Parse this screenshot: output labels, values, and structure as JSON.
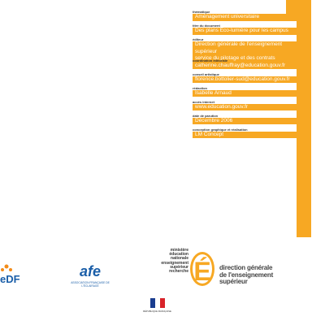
{
  "credits": [
    {
      "label": "thématique",
      "lines": [
        "Aménagement universitaire"
      ]
    },
    {
      "label": "titre du document",
      "lines": [
        "Des plans Éco-lumière pour les campus"
      ]
    },
    {
      "label": "éditeur",
      "lines": [
        "Direction générale de l'enseignement supérieur",
        "service du pilotage et des contrats"
      ]
    },
    {
      "label": "coordination éditoriale",
      "lines": [
        "catherine.chauffray@education.gouv.fr"
      ]
    },
    {
      "label": "conseil artistique",
      "lines": [
        "florence.bottolier-sud@education.gouv.fr"
      ]
    },
    {
      "label": "rédaction",
      "lines": [
        "Isabelle Arnaud"
      ]
    },
    {
      "label": "accès internet",
      "lines": [
        "www.education.gouv.fr"
      ]
    },
    {
      "label": "date de parution",
      "lines": [
        "Décembre 2006"
      ]
    },
    {
      "label": "conception graphique et réalisation",
      "lines": [
        "LM Concept"
      ]
    }
  ],
  "logos": {
    "edf": "eDF",
    "afe": {
      "mark": "afe",
      "name": "ASSOCIATION FRANÇAISE DE L'ÉCLAIRAGE"
    },
    "ministry": [
      "ministère",
      "éducation",
      "nationale",
      "enseignement",
      "supérieur",
      "recherche"
    ],
    "letter": "É",
    "dg": [
      "direction générale",
      "de l'enseignement",
      "supérieur"
    ],
    "republic": "RÉPUBLIQUE FRANÇAISE"
  }
}
